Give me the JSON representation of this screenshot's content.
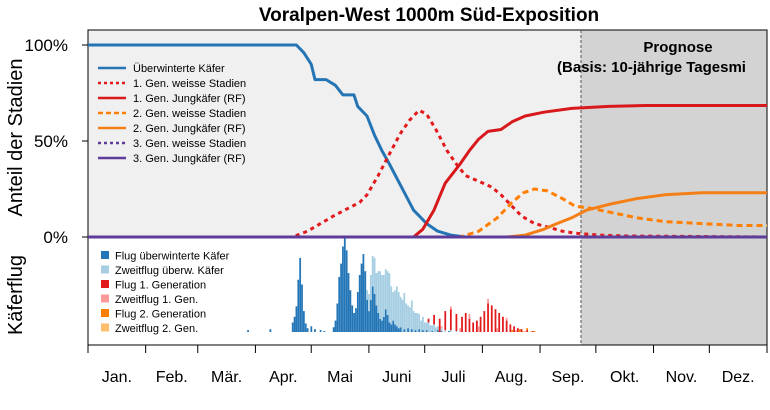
{
  "chart_data": {
    "type": "line",
    "title": "Voralpen-West 1000m Süd-Exposition",
    "ylabel_upper": "Anteil der Stadien",
    "ylabel_lower": "Käferflug",
    "y_ticks": [
      {
        "value": 0,
        "label": "0%"
      },
      {
        "value": 50,
        "label": "50%"
      },
      {
        "value": 100,
        "label": "100%"
      }
    ],
    "ylim": [
      0,
      100
    ],
    "xlim": [
      0,
      365
    ],
    "months": [
      "Jan.",
      "Feb.",
      "Mär.",
      "Apr.",
      "Mai",
      "Juni",
      "Juli",
      "Aug.",
      "Sep.",
      "Okt.",
      "Nov.",
      "Dez."
    ],
    "forecast": {
      "start_day": 265,
      "title": "Prognose",
      "subtitle": "(Basis: 10-jährige Tagesmi"
    },
    "grid": false,
    "legend_position": "top-left",
    "series": [
      {
        "name": "Überwinterte Käfer",
        "color": "#2575b5",
        "dash": "solid",
        "points": [
          [
            0,
            100
          ],
          [
            100,
            100
          ],
          [
            112,
            100
          ],
          [
            116,
            96
          ],
          [
            120,
            90
          ],
          [
            122,
            82
          ],
          [
            128,
            82
          ],
          [
            133,
            79
          ],
          [
            137,
            74
          ],
          [
            143,
            74
          ],
          [
            145,
            68
          ],
          [
            150,
            63
          ],
          [
            154,
            53
          ],
          [
            158,
            45
          ],
          [
            162,
            38
          ],
          [
            168,
            27
          ],
          [
            175,
            14
          ],
          [
            182,
            7
          ],
          [
            188,
            3
          ],
          [
            195,
            1
          ],
          [
            203,
            0
          ],
          [
            365,
            0
          ]
        ]
      },
      {
        "name": "1. Gen. weisse Stadien",
        "color": "#e31a1c",
        "dash": "dotted",
        "points": [
          [
            0,
            0
          ],
          [
            98,
            0
          ],
          [
            110,
            0
          ],
          [
            118,
            3
          ],
          [
            125,
            7
          ],
          [
            132,
            11
          ],
          [
            140,
            15
          ],
          [
            146,
            18
          ],
          [
            150,
            22
          ],
          [
            156,
            32
          ],
          [
            163,
            45
          ],
          [
            168,
            54
          ],
          [
            173,
            61
          ],
          [
            178,
            66
          ],
          [
            182,
            64
          ],
          [
            187,
            56
          ],
          [
            193,
            45
          ],
          [
            198,
            38
          ],
          [
            203,
            32
          ],
          [
            210,
            29
          ],
          [
            217,
            26
          ],
          [
            222,
            22
          ],
          [
            227,
            17
          ],
          [
            233,
            11
          ],
          [
            240,
            7
          ],
          [
            248,
            5
          ],
          [
            255,
            3
          ],
          [
            262,
            2
          ],
          [
            275,
            1
          ],
          [
            290,
            0.5
          ],
          [
            365,
            0
          ]
        ]
      },
      {
        "name": "1. Gen. Jungkäfer (RF)",
        "color": "#d7191c",
        "dash": "solid",
        "points": [
          [
            0,
            0
          ],
          [
            175,
            0
          ],
          [
            180,
            4
          ],
          [
            186,
            14
          ],
          [
            192,
            28
          ],
          [
            200,
            38
          ],
          [
            205,
            45
          ],
          [
            210,
            51
          ],
          [
            215,
            55
          ],
          [
            222,
            56
          ],
          [
            228,
            60
          ],
          [
            235,
            63
          ],
          [
            245,
            65
          ],
          [
            260,
            67
          ],
          [
            280,
            68
          ],
          [
            300,
            68.5
          ],
          [
            365,
            68.5
          ]
        ]
      },
      {
        "name": "2. Gen. weisse Stadien",
        "color": "#ff7f00",
        "dash": "dashed",
        "points": [
          [
            0,
            0
          ],
          [
            200,
            0
          ],
          [
            210,
            3
          ],
          [
            220,
            10
          ],
          [
            228,
            18
          ],
          [
            234,
            23
          ],
          [
            240,
            25
          ],
          [
            247,
            24
          ],
          [
            255,
            20
          ],
          [
            262,
            16
          ],
          [
            270,
            15
          ],
          [
            280,
            13
          ],
          [
            295,
            10
          ],
          [
            310,
            8
          ],
          [
            330,
            7
          ],
          [
            350,
            6
          ],
          [
            365,
            6
          ]
        ]
      },
      {
        "name": "2. Gen. Jungkäfer (RF)",
        "color": "#f57f17",
        "dash": "solid",
        "points": [
          [
            0,
            0
          ],
          [
            225,
            0
          ],
          [
            235,
            1
          ],
          [
            245,
            4
          ],
          [
            252,
            7
          ],
          [
            260,
            10
          ],
          [
            268,
            14
          ],
          [
            280,
            17
          ],
          [
            295,
            20
          ],
          [
            310,
            22
          ],
          [
            330,
            23
          ],
          [
            365,
            23
          ]
        ]
      },
      {
        "name": "3. Gen. weisse Stadien",
        "color": "#5e3c99",
        "dash": "dotted",
        "points": [
          [
            0,
            0
          ],
          [
            365,
            0
          ]
        ]
      },
      {
        "name": "3. Gen. Jungkäfer (RF)",
        "color": "#5e3c99",
        "dash": "solid",
        "points": [
          [
            0,
            0
          ],
          [
            365,
            0
          ]
        ]
      }
    ],
    "flight": {
      "max": 100,
      "series": [
        {
          "name": "Flug überwinterte Käfer",
          "color": "#2275b6",
          "values": [
            [
              86,
              2
            ],
            [
              98,
              3
            ],
            [
              110,
              10
            ],
            [
              111,
              16
            ],
            [
              112,
              27
            ],
            [
              113,
              55
            ],
            [
              114,
              78
            ],
            [
              115,
              50
            ],
            [
              116,
              22
            ],
            [
              117,
              9
            ],
            [
              118,
              4
            ],
            [
              120,
              6
            ],
            [
              122,
              3
            ],
            [
              125,
              2
            ],
            [
              127,
              1
            ],
            [
              132,
              5
            ],
            [
              133,
              12
            ],
            [
              134,
              30
            ],
            [
              135,
              58
            ],
            [
              136,
              72
            ],
            [
              137,
              90
            ],
            [
              138,
              100
            ],
            [
              139,
              86
            ],
            [
              140,
              62
            ],
            [
              141,
              44
            ],
            [
              142,
              28
            ],
            [
              143,
              20
            ],
            [
              144,
              25
            ],
            [
              145,
              42
            ],
            [
              146,
              60
            ],
            [
              147,
              72
            ],
            [
              148,
              82
            ],
            [
              149,
              64
            ],
            [
              150,
              34
            ],
            [
              151,
              22
            ],
            [
              152,
              34
            ],
            [
              153,
              48
            ],
            [
              154,
              40
            ],
            [
              155,
              28
            ],
            [
              156,
              20
            ],
            [
              157,
              14
            ],
            [
              158,
              12
            ],
            [
              159,
              16
            ],
            [
              160,
              24
            ],
            [
              161,
              18
            ],
            [
              162,
              10
            ],
            [
              163,
              8
            ],
            [
              164,
              12
            ],
            [
              165,
              8
            ],
            [
              166,
              6
            ],
            [
              167,
              4
            ],
            [
              168,
              5
            ],
            [
              170,
              3
            ],
            [
              172,
              4
            ],
            [
              174,
              3
            ],
            [
              176,
              2
            ],
            [
              178,
              3
            ],
            [
              180,
              2
            ],
            [
              182,
              2
            ],
            [
              185,
              1
            ],
            [
              188,
              2
            ],
            [
              190,
              1
            ],
            [
              194,
              1
            ]
          ]
        },
        {
          "name": "Zweitflug überw. Käfer",
          "color": "#a6cee3",
          "values": [
            [
              150,
              10
            ],
            [
              151,
              18
            ],
            [
              152,
              26
            ],
            [
              153,
              32
            ],
            [
              154,
              38
            ],
            [
              155,
              34
            ],
            [
              156,
              44
            ],
            [
              157,
              50
            ],
            [
              158,
              48
            ],
            [
              159,
              44
            ],
            [
              160,
              42
            ],
            [
              161,
              46
            ],
            [
              162,
              52
            ],
            [
              163,
              40
            ],
            [
              164,
              30
            ],
            [
              165,
              36
            ],
            [
              166,
              42
            ],
            [
              167,
              38
            ],
            [
              168,
              32
            ],
            [
              169,
              34
            ],
            [
              170,
              38
            ],
            [
              171,
              30
            ],
            [
              172,
              24
            ],
            [
              173,
              26
            ],
            [
              174,
              30
            ],
            [
              175,
              22
            ],
            [
              176,
              18
            ],
            [
              177,
              20
            ],
            [
              178,
              16
            ],
            [
              179,
              12
            ],
            [
              180,
              14
            ],
            [
              181,
              10
            ],
            [
              182,
              8
            ],
            [
              183,
              10
            ],
            [
              184,
              7
            ],
            [
              185,
              6
            ],
            [
              186,
              8
            ],
            [
              187,
              5
            ],
            [
              188,
              4
            ],
            [
              190,
              3
            ],
            [
              192,
              2
            ],
            [
              195,
              2
            ],
            [
              198,
              1
            ]
          ]
        },
        {
          "name": "Flug 1. Generation",
          "color": "#e31a1c",
          "values": [
            [
              183,
              4
            ],
            [
              186,
              10
            ],
            [
              189,
              14
            ],
            [
              192,
              20
            ],
            [
              195,
              22
            ],
            [
              198,
              18
            ],
            [
              201,
              16
            ],
            [
              203,
              20
            ],
            [
              205,
              14
            ],
            [
              207,
              10
            ],
            [
              209,
              12
            ],
            [
              211,
              16
            ],
            [
              213,
              22
            ],
            [
              215,
              30
            ],
            [
              217,
              28
            ],
            [
              219,
              24
            ],
            [
              221,
              20
            ],
            [
              223,
              16
            ],
            [
              225,
              12
            ],
            [
              227,
              8
            ],
            [
              229,
              6
            ],
            [
              231,
              4
            ],
            [
              233,
              3
            ],
            [
              236,
              2
            ],
            [
              239,
              1
            ]
          ]
        },
        {
          "name": "Zweitflug 1. Gen.",
          "color": "#fb9a99",
          "values": [
            [
              190,
              2
            ],
            [
              195,
              3
            ],
            [
              200,
              4
            ],
            [
              205,
              5
            ],
            [
              210,
              6
            ],
            [
              215,
              5
            ],
            [
              220,
              4
            ],
            [
              225,
              3
            ],
            [
              230,
              2
            ],
            [
              235,
              1
            ]
          ]
        },
        {
          "name": "Flug 2. Generation",
          "color": "#ff7f00",
          "values": [
            [
              228,
              2
            ],
            [
              232,
              3
            ],
            [
              236,
              2
            ],
            [
              240,
              1
            ]
          ]
        },
        {
          "name": "Zweitflug 2. Gen.",
          "color": "#fdbf6f",
          "values": [
            [
              234,
              1
            ],
            [
              238,
              1
            ]
          ]
        }
      ]
    }
  }
}
